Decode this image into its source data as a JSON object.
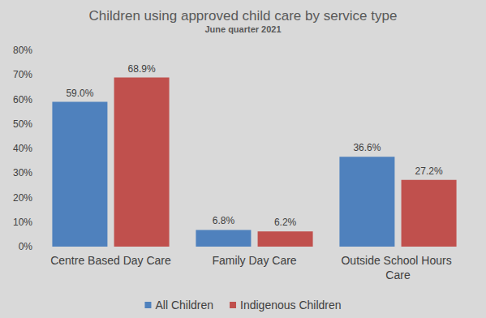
{
  "chart_data": {
    "type": "bar",
    "title": "Children using approved child care by service type",
    "subtitle": "June quarter 2021",
    "categories": [
      "Centre Based Day Care",
      "Family Day Care",
      "Outside School Hours Care"
    ],
    "series": [
      {
        "name": "All Children",
        "color": "#4f81bd",
        "values": [
          59.0,
          6.8,
          36.6
        ],
        "value_labels": [
          "59.0%",
          "6.8%",
          "36.6%"
        ]
      },
      {
        "name": "Indigenous Children",
        "color": "#c0504d",
        "values": [
          68.9,
          6.2,
          27.2
        ],
        "value_labels": [
          "68.9%",
          "6.2%",
          "27.2%"
        ]
      }
    ],
    "ylim": [
      0,
      80
    ],
    "yticks": [
      {
        "value": 0,
        "label": "0%"
      },
      {
        "value": 10,
        "label": "10%"
      },
      {
        "value": 20,
        "label": "20%"
      },
      {
        "value": 30,
        "label": "30%"
      },
      {
        "value": 40,
        "label": "40%"
      },
      {
        "value": 50,
        "label": "50%"
      },
      {
        "value": 60,
        "label": "60%"
      },
      {
        "value": 70,
        "label": "70%"
      },
      {
        "value": 80,
        "label": "80%"
      }
    ],
    "grid": false,
    "legend": "bottom",
    "data_labels": true
  }
}
